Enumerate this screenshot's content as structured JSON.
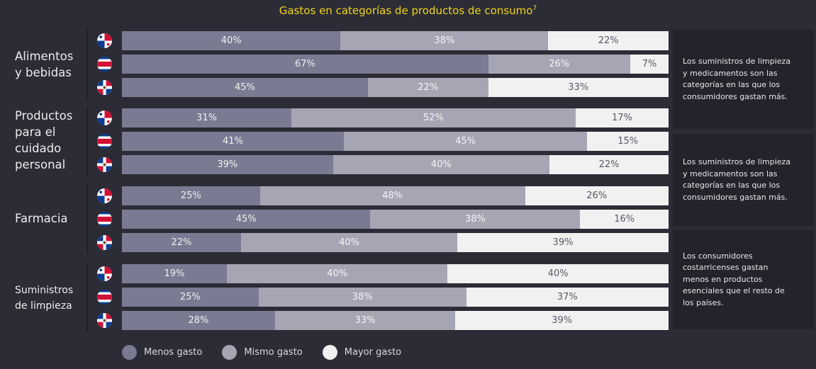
{
  "chart_data": {
    "type": "bar",
    "orientation": "horizontal",
    "stacked": true,
    "title": "Gastos en categorías de productos de consumo",
    "title_superscript": "7",
    "xlabel": "",
    "ylabel": "",
    "xlim": [
      0,
      100
    ],
    "value_suffix": "%",
    "colors": {
      "menos": "#7a7a92",
      "mismo": "#a6a5b4",
      "mayor": "#f1f1f1",
      "title": "#f0d418"
    },
    "legend": {
      "position": "bottom-left",
      "entries": [
        {
          "key": "menos",
          "label": "Menos gasto"
        },
        {
          "key": "mismo",
          "label": "Mismo gasto"
        },
        {
          "key": "mayor",
          "label": "Mayor gasto"
        }
      ]
    },
    "groups": [
      {
        "label": "Alimentos\ny bebidas",
        "rows": [
          {
            "country": "panama-flag",
            "menos": 40,
            "mismo": 38,
            "mayor": 22
          },
          {
            "country": "costa-rica-flag",
            "menos": 67,
            "mismo": 26,
            "mayor": 7
          },
          {
            "country": "dominican-republic-flag",
            "menos": 45,
            "mismo": 22,
            "mayor": 33
          }
        ]
      },
      {
        "label": "Productos\npara el\ncuidado\npersonal",
        "rows": [
          {
            "country": "panama-flag",
            "menos": 31,
            "mismo": 52,
            "mayor": 17
          },
          {
            "country": "costa-rica-flag",
            "menos": 41,
            "mismo": 45,
            "mayor": 15
          },
          {
            "country": "dominican-republic-flag",
            "menos": 39,
            "mismo": 40,
            "mayor": 22
          }
        ]
      },
      {
        "label": "Farmacia",
        "rows": [
          {
            "country": "panama-flag",
            "menos": 25,
            "mismo": 48,
            "mayor": 26
          },
          {
            "country": "costa-rica-flag",
            "menos": 45,
            "mismo": 38,
            "mayor": 16
          },
          {
            "country": "dominican-republic-flag",
            "menos": 22,
            "mismo": 40,
            "mayor": 39
          }
        ]
      },
      {
        "label": "Suministros\nde limpieza",
        "rows": [
          {
            "country": "panama-flag",
            "menos": 19,
            "mismo": 40,
            "mayor": 40
          },
          {
            "country": "costa-rica-flag",
            "menos": 25,
            "mismo": 38,
            "mayor": 37
          },
          {
            "country": "dominican-republic-flag",
            "menos": 28,
            "mismo": 33,
            "mayor": 39
          }
        ]
      }
    ],
    "annotations": [
      "Los suministros  de limpieza\ny medicamentos  son las\ncategorías  en las que los\nconsumidores  gastan  más.",
      "Los suministros  de limpieza\ny medicamentos  son las\ncategorías  en las que los\nconsumidores  gastan  más.",
      " Los consumidores\ncostarricenses  gastan\nmenos en productos\nesenciales  que el resto de\nlos países."
    ]
  }
}
